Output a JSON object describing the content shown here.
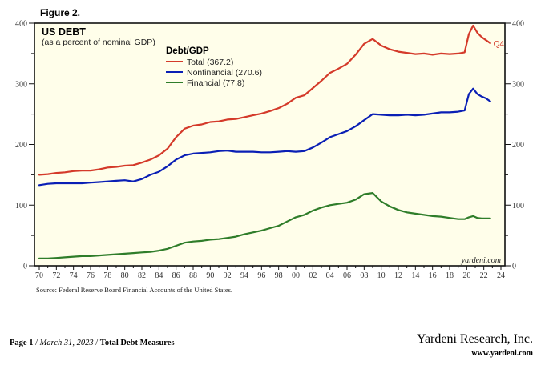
{
  "figure_label": "Figure 2.",
  "source": "Source: Federal Reserve Board Financial Accounts of the United States.",
  "footer": {
    "page": "Page 1",
    "sep1": " / ",
    "date": "March 31, 2023",
    "sep2": " / ",
    "title": "Total Debt Measures",
    "company": "Yardeni Research, Inc.",
    "url": "www.yardeni.com"
  },
  "chart_data": {
    "type": "line",
    "title": "US DEBT",
    "subtitle": "(as a percent of nominal GDP)",
    "xlabel": "",
    "ylabel": "",
    "xlim": [
      1969.5,
      2024.5
    ],
    "ylim": [
      0,
      400
    ],
    "grid": false,
    "background": "#fffeea",
    "legend": {
      "title": "Debt/GDP",
      "placement": "top-center"
    },
    "annotation": {
      "text": "Q4",
      "color": "#d43a2a",
      "series": "Total"
    },
    "watermark": "yardeni.com",
    "x_ticks": [
      "70",
      "72",
      "74",
      "76",
      "78",
      "80",
      "82",
      "84",
      "86",
      "88",
      "90",
      "92",
      "94",
      "96",
      "98",
      "00",
      "02",
      "04",
      "06",
      "08",
      "10",
      "12",
      "14",
      "16",
      "18",
      "20",
      "22",
      "24"
    ],
    "x_tick_years": [
      1970,
      1972,
      1974,
      1976,
      1978,
      1980,
      1982,
      1984,
      1986,
      1988,
      1990,
      1992,
      1994,
      1996,
      1998,
      2000,
      2002,
      2004,
      2006,
      2008,
      2010,
      2012,
      2014,
      2016,
      2018,
      2020,
      2022,
      2024
    ],
    "y_ticks": [
      0,
      100,
      200,
      300,
      400
    ],
    "y_ticks_left": [
      "0",
      "100",
      "200",
      "300",
      "400"
    ],
    "y_ticks_right": [
      "0",
      "100",
      "200",
      "300",
      "400"
    ],
    "x": [
      1970,
      1971,
      1972,
      1973,
      1974,
      1975,
      1976,
      1977,
      1978,
      1979,
      1980,
      1981,
      1982,
      1983,
      1984,
      1985,
      1986,
      1987,
      1988,
      1989,
      1990,
      1991,
      1992,
      1993,
      1994,
      1995,
      1996,
      1997,
      1998,
      1999,
      2000,
      2001,
      2002,
      2003,
      2004,
      2005,
      2006,
      2007,
      2008,
      2009,
      2010,
      2011,
      2012,
      2013,
      2014,
      2015,
      2016,
      2017,
      2018,
      2019,
      2019.75,
      2020.25,
      2020.75,
      2021.25,
      2021.75,
      2022.25,
      2022.75
    ],
    "series": [
      {
        "name": "Total",
        "legend_label": "Total (367.2)",
        "color": "#d43a2a",
        "values": [
          150,
          151,
          153,
          154,
          156,
          157,
          157,
          159,
          162,
          163,
          165,
          166,
          170,
          175,
          182,
          193,
          212,
          226,
          231,
          233,
          237,
          238,
          241,
          242,
          245,
          248,
          251,
          255,
          260,
          267,
          277,
          281,
          293,
          305,
          318,
          325,
          333,
          348,
          366,
          374,
          363,
          357,
          353,
          351,
          349,
          350,
          348,
          350,
          349,
          350,
          352,
          382,
          396,
          384,
          377,
          372,
          367
        ]
      },
      {
        "name": "Nonfinancial",
        "legend_label": "Nonfinancial (270.6)",
        "color": "#0a1fb5",
        "values": [
          133,
          135,
          136,
          136,
          136,
          136,
          137,
          138,
          139,
          140,
          141,
          139,
          143,
          150,
          155,
          164,
          175,
          182,
          185,
          186,
          187,
          189,
          190,
          188,
          188,
          188,
          187,
          187,
          188,
          189,
          188,
          189,
          195,
          203,
          212,
          217,
          222,
          230,
          240,
          250,
          249,
          248,
          248,
          249,
          248,
          249,
          251,
          253,
          253,
          254,
          256,
          283,
          292,
          283,
          279,
          276,
          271
        ]
      },
      {
        "name": "Financial",
        "legend_label": "Financial (77.8)",
        "color": "#2f7d2a",
        "values": [
          12,
          12,
          13,
          14,
          15,
          16,
          16,
          17,
          18,
          19,
          20,
          21,
          22,
          23,
          25,
          28,
          33,
          38,
          40,
          41,
          43,
          44,
          46,
          48,
          52,
          55,
          58,
          62,
          66,
          73,
          80,
          84,
          91,
          96,
          100,
          102,
          104,
          109,
          118,
          120,
          106,
          98,
          92,
          88,
          86,
          84,
          82,
          81,
          79,
          77,
          77,
          80,
          82,
          79,
          78,
          78,
          78
        ]
      }
    ]
  }
}
